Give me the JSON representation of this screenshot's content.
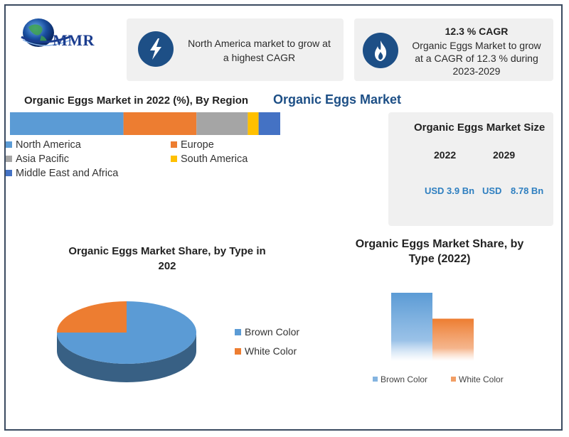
{
  "logo": {
    "text": "MMR"
  },
  "cards": {
    "highlight": {
      "text_line1": "North America market to grow at",
      "text_line2": "a highest CAGR",
      "icon": "lightning-bolt-icon"
    },
    "cagr": {
      "title": "12.3 % CAGR",
      "line1": "Organic Eggs Market to grow",
      "line2": "at a CAGR of 12.3 % during",
      "line3": "2023-2029",
      "icon": "flame-icon"
    }
  },
  "main_title": "Organic Eggs Market",
  "market_size": {
    "title": "Organic Eggs Market Size",
    "year_a": "2022",
    "year_b": "2029",
    "value_a": "USD 3.9 Bn",
    "value_b_prefix": "USD",
    "value_b": "8.78 Bn"
  },
  "chart_data": [
    {
      "type": "bar",
      "orientation": "horizontal-stacked",
      "title": "Organic Eggs Market in 2022 (%), By Region",
      "series": [
        {
          "name": "North America",
          "values": [
            42
          ],
          "color": "#5b9bd5"
        },
        {
          "name": "Europe",
          "values": [
            27
          ],
          "color": "#ed7d31"
        },
        {
          "name": "Asia Pacific",
          "values": [
            19
          ],
          "color": "#a5a5a5"
        },
        {
          "name": "South America",
          "values": [
            4
          ],
          "color": "#ffc000"
        },
        {
          "name": "Middle East and Africa",
          "values": [
            8
          ],
          "color": "#4472c4"
        }
      ]
    },
    {
      "type": "pie",
      "title_line1": "Organic Eggs Market Share, by Type in",
      "title_line2": "202",
      "categories": [
        "Brown Color",
        "White Color"
      ],
      "values": [
        75,
        25
      ],
      "colors": [
        "#5b9bd5",
        "#ed7d31"
      ]
    },
    {
      "type": "bar",
      "title_line1": "Organic Eggs Market Share, by",
      "title_line2": "Type (2022)",
      "categories": [
        "Brown Color",
        "White Color"
      ],
      "values": [
        1.0,
        0.62
      ],
      "colors": [
        "#5b9bd5",
        "#ed7d31"
      ]
    }
  ]
}
